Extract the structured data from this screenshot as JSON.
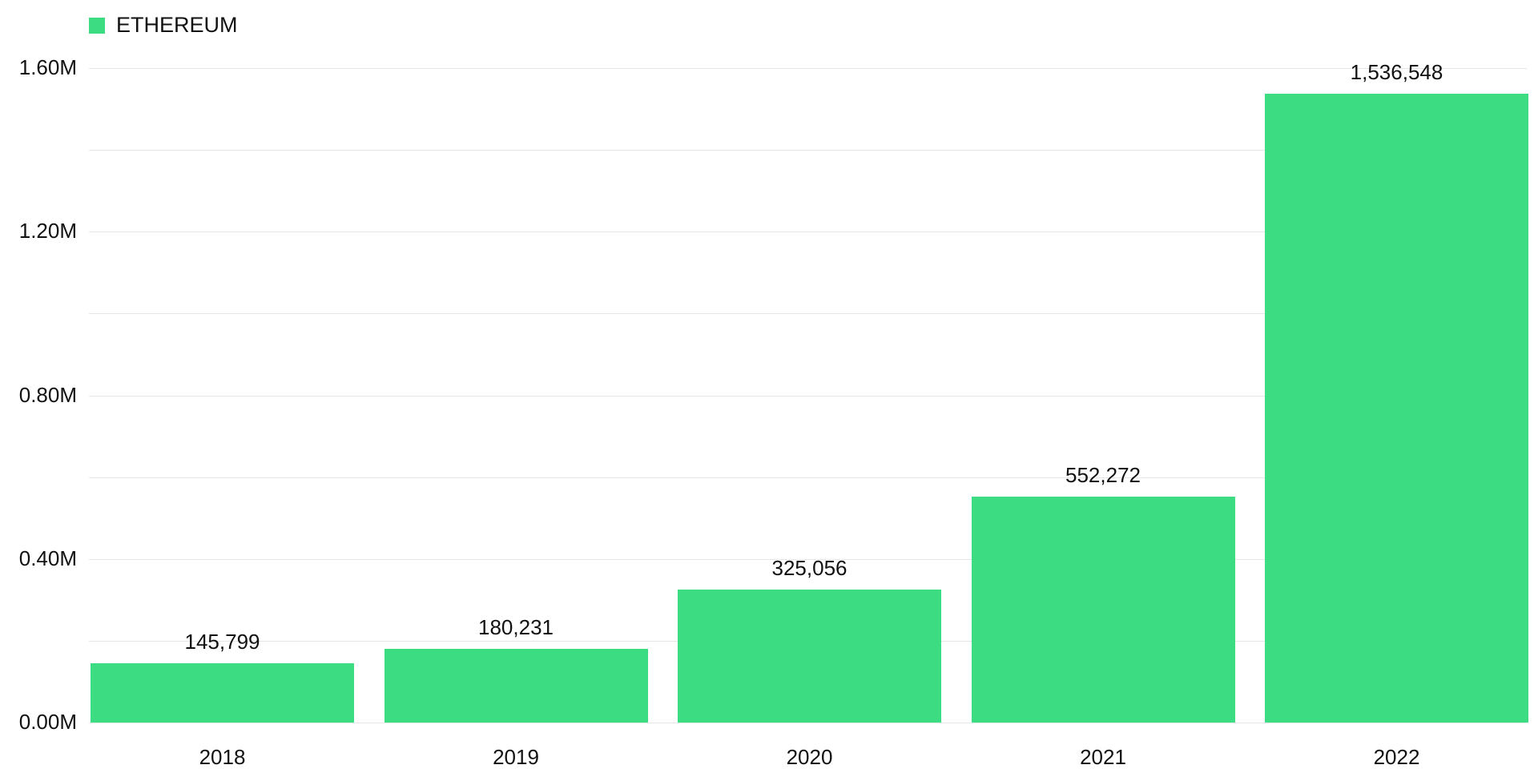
{
  "legend": {
    "label": "ETHEREUM",
    "color": "#3bdc82"
  },
  "chart_data": {
    "type": "bar",
    "title": "",
    "xlabel": "",
    "ylabel": "",
    "categories": [
      "2018",
      "2019",
      "2020",
      "2021",
      "2022"
    ],
    "series": [
      {
        "name": "ETHEREUM",
        "color": "#3bdc82",
        "values": [
          145799,
          180231,
          325056,
          552272,
          1536548
        ],
        "labels": [
          "145,799",
          "180,231",
          "325,056",
          "552,272",
          "1,536,548"
        ]
      }
    ],
    "ylim": [
      0,
      1600000
    ],
    "yticks": [
      {
        "value": 0,
        "label": "0.00M"
      },
      {
        "value": 400000,
        "label": "0.40M"
      },
      {
        "value": 800000,
        "label": "0.80M"
      },
      {
        "value": 1200000,
        "label": "1.20M"
      },
      {
        "value": 1600000,
        "label": "1.60M"
      }
    ],
    "minor_grid_step": 200000,
    "grid": true,
    "legend_position": "top-left"
  }
}
